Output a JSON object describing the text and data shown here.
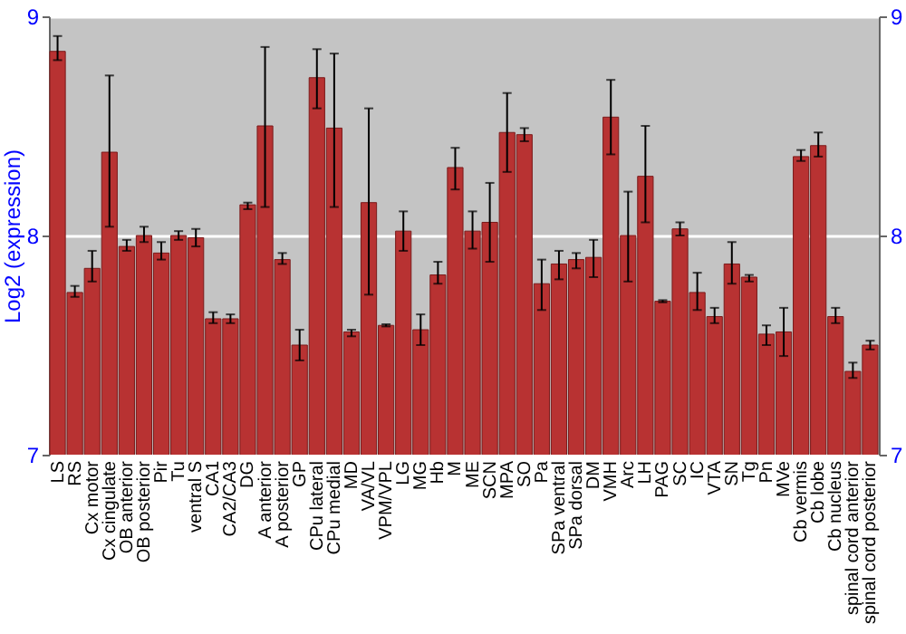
{
  "chart_data": {
    "type": "bar",
    "ylabel": "Log2 (expression)",
    "categories": [
      "LS",
      "RS",
      "Cx motor",
      "Cx cingulate",
      "OB anterior",
      "OB posterior",
      "Pir",
      "Tu",
      "ventral S",
      "CA1",
      "CA2/CA3",
      "DG",
      "A anterior",
      "A posterior",
      "GP",
      "CPu lateral",
      "CPu medial",
      "MD",
      "VA/VL",
      "VPM/VPL",
      "LG",
      "MG",
      "Hb",
      "M",
      "ME",
      "SCN",
      "MPA",
      "SO",
      "Pa",
      "SPa ventral",
      "SPa dorsal",
      "DM",
      "VMH",
      "Arc",
      "LH",
      "PAG",
      "SC",
      "IC",
      "VTA",
      "SN",
      "Tg",
      "Pn",
      "MVe",
      "Cb vermis",
      "Cb lobe",
      "Cb nucleus",
      "spinal cord anterior",
      "spinal cord posterior"
    ],
    "values": [
      8.84,
      7.74,
      7.85,
      8.38,
      7.95,
      8.0,
      7.92,
      8.0,
      7.99,
      7.62,
      7.62,
      8.14,
      8.5,
      7.89,
      7.5,
      8.72,
      8.49,
      7.56,
      8.15,
      7.59,
      8.02,
      7.57,
      7.82,
      8.31,
      8.02,
      8.06,
      8.47,
      8.46,
      7.78,
      7.87,
      7.89,
      7.9,
      8.54,
      8.0,
      8.27,
      7.7,
      8.03,
      7.74,
      7.63,
      7.87,
      7.81,
      7.55,
      7.56,
      8.36,
      8.41,
      7.63,
      7.38,
      7.5
    ],
    "errors": [
      [
        8.8,
        8.91
      ],
      [
        7.72,
        7.77
      ],
      [
        7.79,
        7.93
      ],
      [
        8.04,
        8.73
      ],
      [
        7.93,
        7.98
      ],
      [
        7.97,
        8.04
      ],
      [
        7.89,
        7.97
      ],
      [
        7.98,
        8.02
      ],
      [
        7.95,
        8.03
      ],
      [
        7.6,
        7.65
      ],
      [
        7.6,
        7.64
      ],
      [
        8.12,
        8.15
      ],
      [
        8.13,
        8.86
      ],
      [
        7.87,
        7.92
      ],
      [
        7.43,
        7.57
      ],
      [
        8.58,
        8.85
      ],
      [
        8.13,
        8.83
      ],
      [
        7.54,
        7.57
      ],
      [
        7.73,
        8.58
      ],
      [
        7.585,
        7.595
      ],
      [
        7.93,
        8.11
      ],
      [
        7.5,
        7.64
      ],
      [
        7.78,
        7.88
      ],
      [
        8.21,
        8.4
      ],
      [
        7.94,
        8.11
      ],
      [
        7.88,
        8.24
      ],
      [
        8.29,
        8.65
      ],
      [
        8.43,
        8.49
      ],
      [
        7.66,
        7.89
      ],
      [
        7.8,
        7.93
      ],
      [
        7.85,
        7.92
      ],
      [
        7.81,
        7.98
      ],
      [
        8.37,
        8.71
      ],
      [
        7.79,
        8.2
      ],
      [
        8.06,
        8.5
      ],
      [
        7.695,
        7.705
      ],
      [
        8.0,
        8.06
      ],
      [
        7.66,
        7.83
      ],
      [
        7.6,
        7.67
      ],
      [
        7.78,
        7.97
      ],
      [
        7.79,
        7.82
      ],
      [
        7.5,
        7.59
      ],
      [
        7.45,
        7.67
      ],
      [
        8.34,
        8.39
      ],
      [
        8.36,
        8.47
      ],
      [
        7.6,
        7.67
      ],
      [
        7.35,
        7.42
      ],
      [
        7.48,
        7.52
      ]
    ],
    "color": "#b83232",
    "ylim": [
      7,
      9
    ],
    "yticks": [
      7,
      8,
      9
    ],
    "y2lim": [
      7,
      9
    ],
    "y2ticks": [
      7,
      8,
      9
    ],
    "grid": "y"
  }
}
